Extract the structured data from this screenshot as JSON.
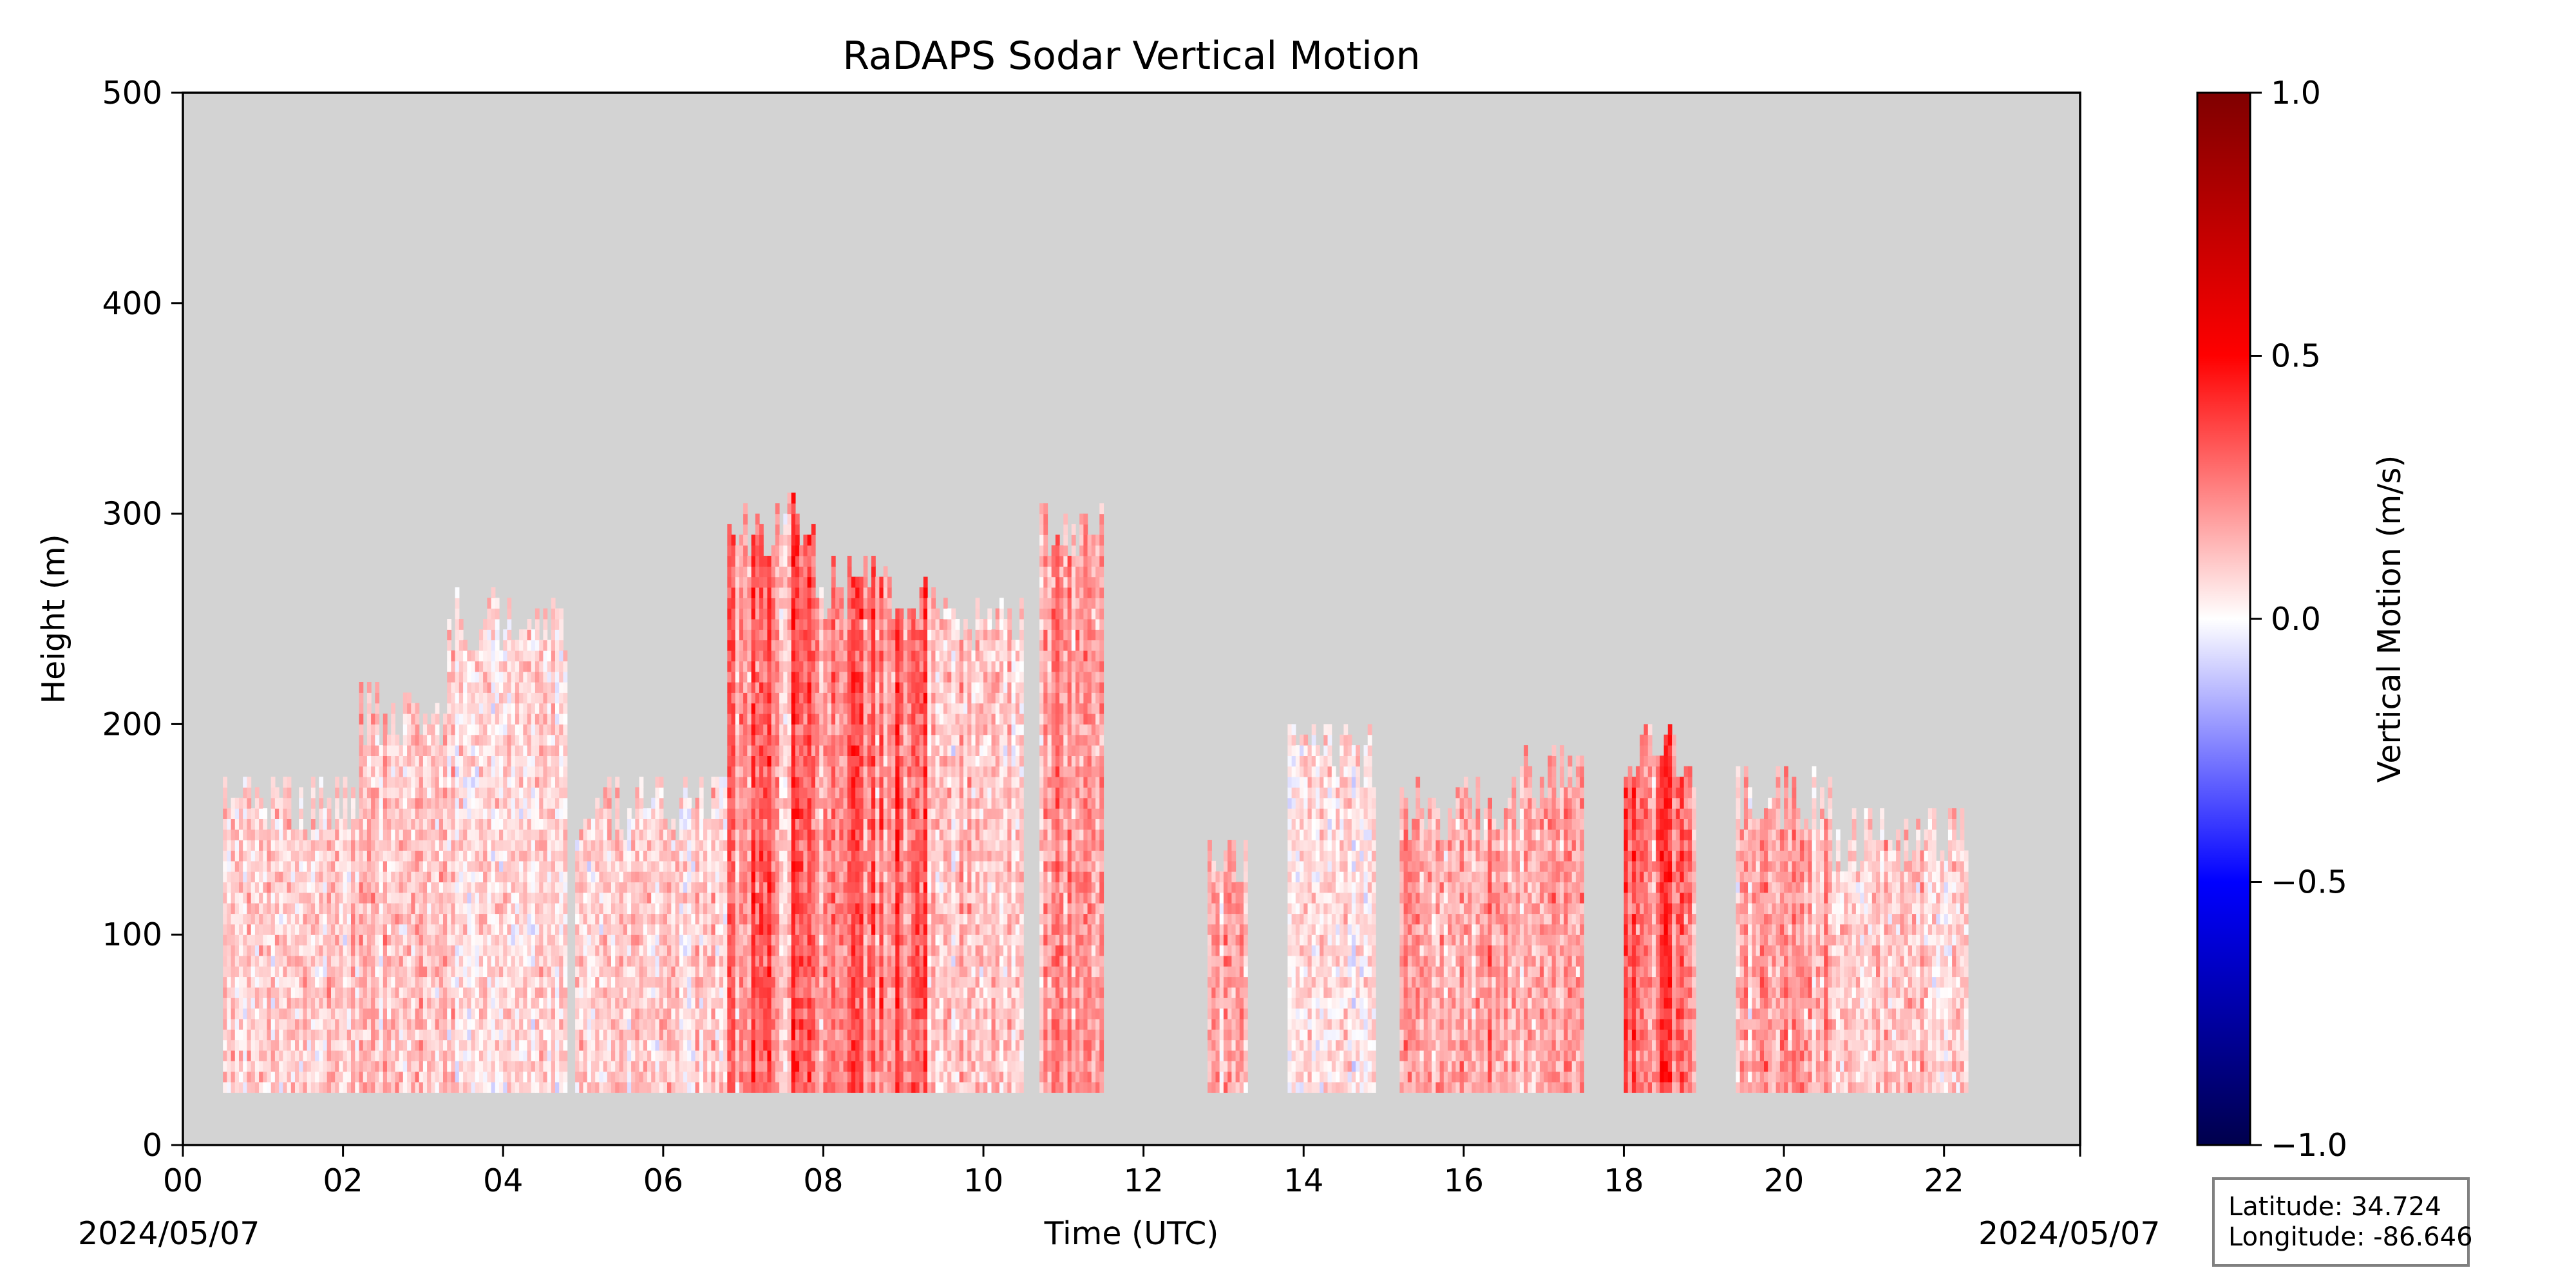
{
  "chart_data": {
    "type": "heatmap",
    "title": "RaDAPS Sodar Vertical Motion",
    "xlabel": "Time (UTC)",
    "ylabel": "Height (m)",
    "xlim": [
      0,
      23.7
    ],
    "ylim": [
      0,
      500
    ],
    "x_ticks": [
      "00",
      "02",
      "04",
      "06",
      "08",
      "10",
      "12",
      "14",
      "16",
      "18",
      "20",
      "22"
    ],
    "x_tick_values": [
      0,
      2,
      4,
      6,
      8,
      10,
      12,
      14,
      16,
      18,
      20,
      22
    ],
    "y_ticks": [
      0,
      100,
      200,
      300,
      400,
      500
    ],
    "date_left": "2024/05/07",
    "date_right": "2024/05/07",
    "background_color": "#d3d3d3",
    "colorbar": {
      "label": "Vertical Motion (m/s)",
      "range": [
        -1.0,
        1.0
      ],
      "ticks": [
        "1.0",
        "0.5",
        "0.0",
        "−0.5",
        "−1.0"
      ],
      "tick_values": [
        1.0,
        0.5,
        0.0,
        -0.5,
        -1.0
      ],
      "colormap": "seismic",
      "color_stops": [
        {
          "value": -1.0,
          "color": "#00004c"
        },
        {
          "value": -0.5,
          "color": "#0000ff"
        },
        {
          "value": 0.0,
          "color": "#ffffff"
        },
        {
          "value": 0.5,
          "color": "#ff0000"
        },
        {
          "value": 1.0,
          "color": "#7f0000"
        }
      ]
    },
    "data_blocks": [
      {
        "t_start": 0.5,
        "t_end": 2.2,
        "h_bottom": 25,
        "h_top": 175,
        "w": 0.15
      },
      {
        "t_start": 2.2,
        "t_end": 3.3,
        "h_bottom": 25,
        "h_top": 220,
        "w": 0.2
      },
      {
        "t_start": 3.3,
        "t_end": 4.8,
        "h_bottom": 25,
        "h_top": 265,
        "w": 0.12
      },
      {
        "t_start": 4.9,
        "t_end": 6.8,
        "h_bottom": 25,
        "h_top": 175,
        "w": 0.15
      },
      {
        "t_start": 6.8,
        "t_end": 7.9,
        "h_bottom": 25,
        "h_top": 310,
        "w": 0.4
      },
      {
        "t_start": 7.9,
        "t_end": 9.3,
        "h_bottom": 25,
        "h_top": 280,
        "w": 0.45
      },
      {
        "t_start": 9.3,
        "t_end": 10.5,
        "h_bottom": 25,
        "h_top": 265,
        "w": 0.2
      },
      {
        "t_start": 10.7,
        "t_end": 11.5,
        "h_bottom": 25,
        "h_top": 310,
        "w": 0.3
      },
      {
        "t_start": 12.8,
        "t_end": 13.3,
        "h_bottom": 25,
        "h_top": 155,
        "w": 0.3
      },
      {
        "t_start": 13.8,
        "t_end": 14.9,
        "h_bottom": 25,
        "h_top": 200,
        "w": 0.1
      },
      {
        "t_start": 15.2,
        "t_end": 16.7,
        "h_bottom": 25,
        "h_top": 175,
        "w": 0.3
      },
      {
        "t_start": 16.7,
        "t_end": 17.5,
        "h_bottom": 25,
        "h_top": 190,
        "w": 0.25
      },
      {
        "t_start": 18.0,
        "t_end": 18.9,
        "h_bottom": 25,
        "h_top": 200,
        "w": 0.45
      },
      {
        "t_start": 19.4,
        "t_end": 20.6,
        "h_bottom": 25,
        "h_top": 180,
        "w": 0.3
      },
      {
        "t_start": 20.6,
        "t_end": 22.3,
        "h_bottom": 25,
        "h_top": 160,
        "w": 0.15
      }
    ]
  },
  "info_box": {
    "latitude": "Latitude: 34.724",
    "longitude": "Longitude: -86.646"
  }
}
